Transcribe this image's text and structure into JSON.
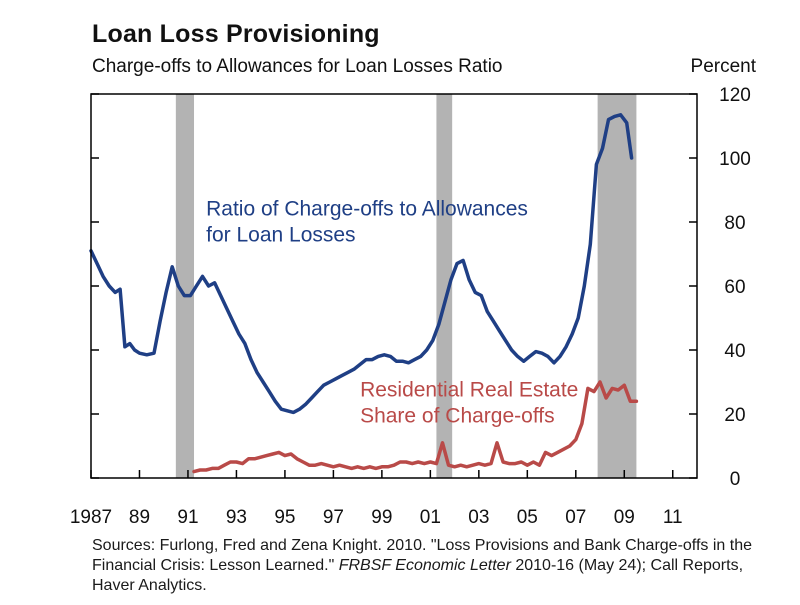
{
  "header": {
    "title": "Loan Loss Provisioning",
    "subtitle": "Charge-offs to Allowances for Loan Losses Ratio",
    "unit": "Percent"
  },
  "source": {
    "line1": "Sources: Furlong, Fred and Zena Knight. 2010. \"Loss Provisions and Bank Charge-offs in the Financial Crisis: Lesson Learned.\" ",
    "journal": "FRBSF Economic Letter",
    "line2": " 2010-16 (May 24); Call Reports, Haver Analytics."
  },
  "chart_data": {
    "type": "line",
    "title": "Loan Loss Provisioning",
    "subtitle": "Charge-offs to Allowances for Loan Losses Ratio",
    "ylabel": "Percent",
    "xlim": [
      1987,
      2012
    ],
    "ylim": [
      0,
      120
    ],
    "x_ticks": [
      1987,
      1989,
      1991,
      1993,
      1995,
      1997,
      1999,
      2001,
      2003,
      2005,
      2007,
      2009,
      2011
    ],
    "x_tick_labels": [
      "1987",
      "89",
      "91",
      "93",
      "95",
      "97",
      "99",
      "01",
      "03",
      "05",
      "07",
      "09",
      "11"
    ],
    "y_ticks": [
      0,
      20,
      40,
      60,
      80,
      100,
      120
    ],
    "y_tick_labels": [
      "0",
      "20",
      "40",
      "60",
      "80",
      "100",
      "120"
    ],
    "y_axis_side": "right",
    "grid": false,
    "recession_shading": [
      [
        1990.5,
        1991.25
      ],
      [
        2001.25,
        2001.9
      ],
      [
        2007.9,
        2009.5
      ]
    ],
    "colors": {
      "recession": "#b3b3b3",
      "ratio": "#1f3f85",
      "residential": "#b94a48",
      "axis": "#000000"
    },
    "series": [
      {
        "name": "Ratio of Charge-offs to Allowances for Loan Losses",
        "label_lines": [
          "Ratio of Charge-offs to Allowances",
          "for Loan Losses"
        ],
        "label_anchor": [
          1991.75,
          82
        ],
        "color": "#1f3f85",
        "points": [
          [
            1987.0,
            71
          ],
          [
            1987.25,
            67
          ],
          [
            1987.5,
            63
          ],
          [
            1987.75,
            60
          ],
          [
            1988.0,
            58
          ],
          [
            1988.2,
            59
          ],
          [
            1988.4,
            41
          ],
          [
            1988.6,
            42
          ],
          [
            1988.8,
            40
          ],
          [
            1989.0,
            39
          ],
          [
            1989.3,
            38.5
          ],
          [
            1989.6,
            39
          ],
          [
            1989.85,
            49
          ],
          [
            1990.1,
            58
          ],
          [
            1990.35,
            66
          ],
          [
            1990.6,
            60
          ],
          [
            1990.85,
            57
          ],
          [
            1991.1,
            57
          ],
          [
            1991.35,
            60
          ],
          [
            1991.6,
            63
          ],
          [
            1991.85,
            60
          ],
          [
            1992.1,
            61
          ],
          [
            1992.35,
            57
          ],
          [
            1992.6,
            53
          ],
          [
            1992.85,
            49
          ],
          [
            1993.1,
            45
          ],
          [
            1993.35,
            42
          ],
          [
            1993.6,
            37
          ],
          [
            1993.85,
            33
          ],
          [
            1994.1,
            30
          ],
          [
            1994.35,
            27
          ],
          [
            1994.6,
            24
          ],
          [
            1994.85,
            21.5
          ],
          [
            1995.1,
            21
          ],
          [
            1995.35,
            20.5
          ],
          [
            1995.6,
            21.5
          ],
          [
            1995.85,
            23
          ],
          [
            1996.1,
            25
          ],
          [
            1996.35,
            27
          ],
          [
            1996.6,
            29
          ],
          [
            1996.85,
            30
          ],
          [
            1997.1,
            31
          ],
          [
            1997.35,
            32
          ],
          [
            1997.6,
            33
          ],
          [
            1997.85,
            34
          ],
          [
            1998.1,
            35.5
          ],
          [
            1998.35,
            37
          ],
          [
            1998.6,
            37
          ],
          [
            1998.85,
            38
          ],
          [
            1999.1,
            38.5
          ],
          [
            1999.35,
            38
          ],
          [
            1999.6,
            36.5
          ],
          [
            1999.85,
            36.5
          ],
          [
            2000.1,
            36
          ],
          [
            2000.35,
            37
          ],
          [
            2000.6,
            38
          ],
          [
            2000.85,
            40
          ],
          [
            2001.1,
            43
          ],
          [
            2001.35,
            48
          ],
          [
            2001.6,
            55
          ],
          [
            2001.85,
            62
          ],
          [
            2002.1,
            67
          ],
          [
            2002.35,
            68
          ],
          [
            2002.6,
            62
          ],
          [
            2002.85,
            58
          ],
          [
            2003.1,
            57
          ],
          [
            2003.35,
            52
          ],
          [
            2003.6,
            49
          ],
          [
            2003.85,
            46
          ],
          [
            2004.1,
            43
          ],
          [
            2004.35,
            40
          ],
          [
            2004.6,
            38
          ],
          [
            2004.85,
            36.5
          ],
          [
            2005.1,
            38
          ],
          [
            2005.35,
            39.5
          ],
          [
            2005.6,
            39
          ],
          [
            2005.85,
            38
          ],
          [
            2006.1,
            36
          ],
          [
            2006.35,
            38
          ],
          [
            2006.6,
            41
          ],
          [
            2006.85,
            45
          ],
          [
            2007.1,
            50
          ],
          [
            2007.35,
            60
          ],
          [
            2007.6,
            73
          ],
          [
            2007.85,
            98
          ],
          [
            2008.1,
            103
          ],
          [
            2008.35,
            112
          ],
          [
            2008.6,
            113
          ],
          [
            2008.85,
            113.5
          ],
          [
            2009.1,
            111
          ],
          [
            2009.3,
            100
          ]
        ]
      },
      {
        "name": "Residential Real Estate Share of Charge-offs",
        "label_lines": [
          "Residential Real Estate",
          "Share of Charge-offs"
        ],
        "label_anchor": [
          1998.1,
          25.5
        ],
        "color": "#b94a48",
        "points": [
          [
            1991.25,
            2
          ],
          [
            1991.5,
            2.5
          ],
          [
            1991.75,
            2.5
          ],
          [
            1992.0,
            3
          ],
          [
            1992.25,
            3
          ],
          [
            1992.5,
            4
          ],
          [
            1992.75,
            5
          ],
          [
            1993.0,
            5
          ],
          [
            1993.25,
            4.5
          ],
          [
            1993.5,
            6
          ],
          [
            1993.75,
            6
          ],
          [
            1994.0,
            6.5
          ],
          [
            1994.25,
            7
          ],
          [
            1994.5,
            7.5
          ],
          [
            1994.75,
            8
          ],
          [
            1995.0,
            7
          ],
          [
            1995.25,
            7.5
          ],
          [
            1995.5,
            6
          ],
          [
            1995.75,
            5
          ],
          [
            1996.0,
            4
          ],
          [
            1996.25,
            4
          ],
          [
            1996.5,
            4.5
          ],
          [
            1996.75,
            4
          ],
          [
            1997.0,
            3.5
          ],
          [
            1997.25,
            4
          ],
          [
            1997.5,
            3.5
          ],
          [
            1997.75,
            3
          ],
          [
            1998.0,
            3.5
          ],
          [
            1998.25,
            3
          ],
          [
            1998.5,
            3.5
          ],
          [
            1998.75,
            3
          ],
          [
            1999.0,
            3.5
          ],
          [
            1999.25,
            3.5
          ],
          [
            1999.5,
            4
          ],
          [
            1999.75,
            5
          ],
          [
            2000.0,
            5
          ],
          [
            2000.25,
            4.5
          ],
          [
            2000.5,
            5
          ],
          [
            2000.75,
            4.5
          ],
          [
            2001.0,
            5
          ],
          [
            2001.25,
            4.5
          ],
          [
            2001.5,
            11
          ],
          [
            2001.75,
            4
          ],
          [
            2002.0,
            3.5
          ],
          [
            2002.25,
            4
          ],
          [
            2002.5,
            3.5
          ],
          [
            2002.75,
            4
          ],
          [
            2003.0,
            4.5
          ],
          [
            2003.25,
            4
          ],
          [
            2003.5,
            4.5
          ],
          [
            2003.75,
            11
          ],
          [
            2004.0,
            5
          ],
          [
            2004.25,
            4.5
          ],
          [
            2004.5,
            4.5
          ],
          [
            2004.75,
            5
          ],
          [
            2005.0,
            4
          ],
          [
            2005.25,
            5
          ],
          [
            2005.5,
            4
          ],
          [
            2005.75,
            8
          ],
          [
            2006.0,
            7
          ],
          [
            2006.25,
            8
          ],
          [
            2006.5,
            9
          ],
          [
            2006.75,
            10
          ],
          [
            2007.0,
            12
          ],
          [
            2007.25,
            17
          ],
          [
            2007.5,
            28
          ],
          [
            2007.75,
            27
          ],
          [
            2008.0,
            30
          ],
          [
            2008.25,
            25
          ],
          [
            2008.5,
            28
          ],
          [
            2008.75,
            27.5
          ],
          [
            2009.0,
            29
          ],
          [
            2009.25,
            24
          ],
          [
            2009.5,
            24
          ]
        ]
      }
    ]
  }
}
